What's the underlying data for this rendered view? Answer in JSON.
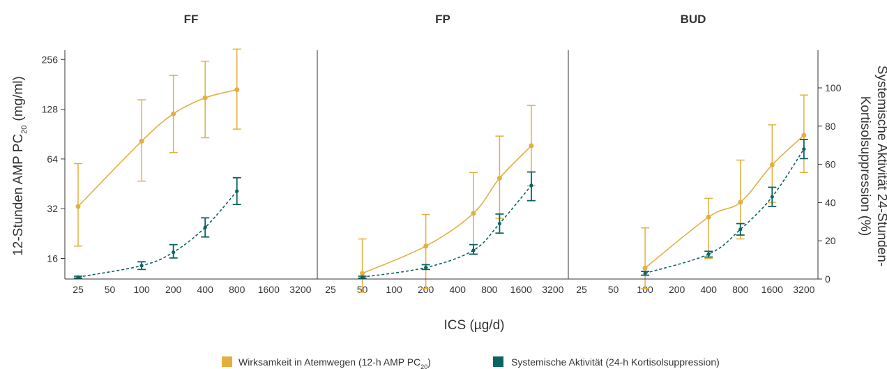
{
  "colors": {
    "efficacy": "#E3B040",
    "systemic": "#0B6460",
    "axis": "#333333"
  },
  "chart_data": {
    "type": "line",
    "xlabel": "ICS (µg/d)",
    "ylabel_left": {
      "main": "12-Stunden AMP PC",
      "sub": "20",
      "unit": "(mg/ml)"
    },
    "ylabel_right": [
      "Systemische Aktivität 24-Stunden-",
      "Kortisolsuppression (%)"
    ],
    "y_left_scale": "log2",
    "y_left_ticks": [
      "16",
      "32",
      "64",
      "128",
      "256"
    ],
    "y_right_ticks": [
      "0",
      "20",
      "40",
      "60",
      "80",
      "100"
    ],
    "x_scale": "log2",
    "x_ticks": [
      "25",
      "50",
      "100",
      "200",
      "400",
      "800",
      "1600",
      "3200"
    ],
    "legend": [
      {
        "key": "efficacy",
        "label": "Wirksamkeit in Atemwegen (12-h AMP PC",
        "sub": "20",
        "label_end": ")"
      },
      {
        "key": "systemic",
        "label": "Systemische Aktivität (24-h Kortisolsuppression)"
      }
    ],
    "panels": [
      {
        "title": "FF",
        "efficacy": [
          {
            "x": 25,
            "y": 33,
            "lo": 19,
            "hi": 60
          },
          {
            "x": 100,
            "y": 82,
            "lo": 47,
            "hi": 146
          },
          {
            "x": 200,
            "y": 120,
            "lo": 70,
            "hi": 205
          },
          {
            "x": 400,
            "y": 150,
            "lo": 86,
            "hi": 250
          },
          {
            "x": 800,
            "y": 168,
            "lo": 97,
            "hi": 296
          }
        ],
        "systemic": [
          {
            "x": 25,
            "y": 1,
            "lo": 0.5,
            "hi": 1.5
          },
          {
            "x": 100,
            "y": 7,
            "lo": 5,
            "hi": 9
          },
          {
            "x": 200,
            "y": 14,
            "lo": 11,
            "hi": 18
          },
          {
            "x": 400,
            "y": 27,
            "lo": 22,
            "hi": 32
          },
          {
            "x": 800,
            "y": 46,
            "lo": 39,
            "hi": 53
          }
        ]
      },
      {
        "title": "FP",
        "efficacy": [
          {
            "x": 50,
            "y": 13,
            "lo": 10,
            "hi": 21
          },
          {
            "x": 200,
            "y": 19,
            "lo": 10.5,
            "hi": 29.5
          },
          {
            "x": 565,
            "y": 30,
            "lo": 17,
            "hi": 53
          },
          {
            "x": 1000,
            "y": 49,
            "lo": 28,
            "hi": 88
          },
          {
            "x": 2000,
            "y": 77,
            "lo": 44,
            "hi": 135
          }
        ],
        "systemic": [
          {
            "x": 50,
            "y": 1,
            "lo": 0.5,
            "hi": 1.5
          },
          {
            "x": 200,
            "y": 6,
            "lo": 5,
            "hi": 7.5
          },
          {
            "x": 565,
            "y": 15,
            "lo": 13,
            "hi": 18
          },
          {
            "x": 1000,
            "y": 29,
            "lo": 24,
            "hi": 34
          },
          {
            "x": 2000,
            "y": 49,
            "lo": 41,
            "hi": 56
          }
        ]
      },
      {
        "title": "BUD",
        "efficacy": [
          {
            "x": 100,
            "y": 14,
            "lo": 10.5,
            "hi": 24.5
          },
          {
            "x": 400,
            "y": 28.5,
            "lo": 16,
            "hi": 37
          },
          {
            "x": 800,
            "y": 35,
            "lo": 21,
            "hi": 63
          },
          {
            "x": 1600,
            "y": 59,
            "lo": 35,
            "hi": 103
          },
          {
            "x": 3200,
            "y": 89,
            "lo": 53,
            "hi": 156
          }
        ],
        "systemic": [
          {
            "x": 100,
            "y": 3,
            "lo": 2,
            "hi": 4
          },
          {
            "x": 400,
            "y": 13,
            "lo": 11.5,
            "hi": 14.5
          },
          {
            "x": 800,
            "y": 26,
            "lo": 23,
            "hi": 29
          },
          {
            "x": 1600,
            "y": 43,
            "lo": 38,
            "hi": 48
          },
          {
            "x": 3200,
            "y": 68,
            "lo": 63,
            "hi": 73
          }
        ]
      }
    ]
  }
}
